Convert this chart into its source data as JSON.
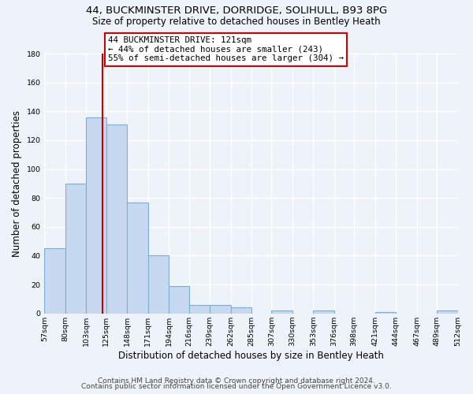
{
  "title": "44, BUCKMINSTER DRIVE, DORRIDGE, SOLIHULL, B93 8PG",
  "subtitle": "Size of property relative to detached houses in Bentley Heath",
  "xlabel": "Distribution of detached houses by size in Bentley Heath",
  "ylabel": "Number of detached properties",
  "footer_line1": "Contains HM Land Registry data © Crown copyright and database right 2024.",
  "footer_line2": "Contains public sector information licensed under the Open Government Licence v3.0.",
  "bar_edges": [
    57,
    80,
    103,
    125,
    148,
    171,
    194,
    216,
    239,
    262,
    285,
    307,
    330,
    353,
    376,
    398,
    421,
    444,
    467,
    489,
    512
  ],
  "bar_heights": [
    45,
    90,
    136,
    131,
    77,
    40,
    19,
    6,
    6,
    4,
    0,
    2,
    0,
    2,
    0,
    0,
    1,
    0,
    0,
    2
  ],
  "bar_color": "#c6d9f0",
  "bar_edgecolor": "#7bafd4",
  "ylim": [
    0,
    180
  ],
  "yticks": [
    0,
    20,
    40,
    60,
    80,
    100,
    120,
    140,
    160,
    180
  ],
  "property_line_x": 121,
  "ann_line1": "44 BUCKMINSTER DRIVE: 121sqm",
  "ann_line2": "← 44% of detached houses are smaller (243)",
  "ann_line3": "55% of semi-detached houses are larger (304) →",
  "box_color": "#ffffff",
  "box_edgecolor": "#cc0000",
  "line_color": "#cc0000",
  "tick_labels": [
    "57sqm",
    "80sqm",
    "103sqm",
    "125sqm",
    "148sqm",
    "171sqm",
    "194sqm",
    "216sqm",
    "239sqm",
    "262sqm",
    "285sqm",
    "307sqm",
    "330sqm",
    "353sqm",
    "376sqm",
    "398sqm",
    "421sqm",
    "444sqm",
    "467sqm",
    "489sqm",
    "512sqm"
  ],
  "background_color": "#eef2f9",
  "title_fontsize": 9.5,
  "subtitle_fontsize": 8.5,
  "axis_label_fontsize": 8.5,
  "tick_fontsize": 6.8,
  "ann_fontsize": 7.8,
  "footer_fontsize": 6.5
}
